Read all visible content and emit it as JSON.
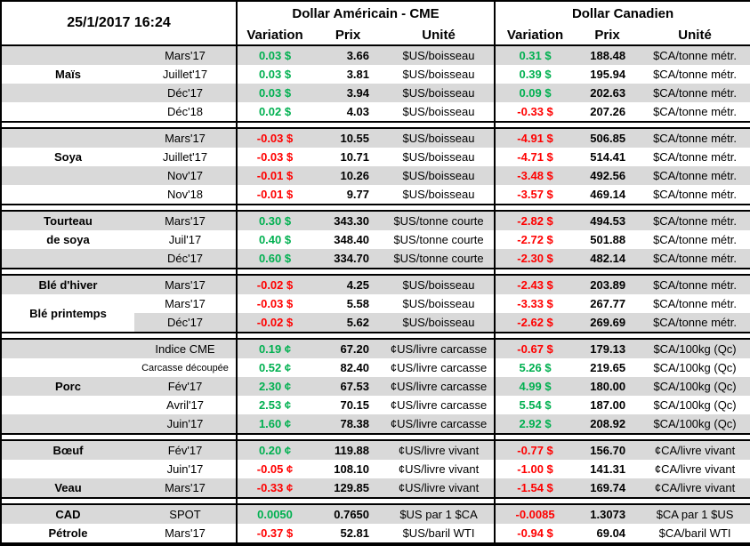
{
  "header": {
    "datetime": "25/1/2017 16:24",
    "us_title": "Dollar Américain - CME",
    "ca_title": "Dollar Canadien",
    "variation_label": "Variation",
    "prix_label": "Prix",
    "unite_label": "Unité"
  },
  "colors": {
    "positive": "#00B050",
    "negative": "#FF0000",
    "band": "#D9D9D9",
    "border": "#000000"
  },
  "sections": [
    {
      "commodity": "Maïs",
      "rows": [
        {
          "band": true,
          "name": "",
          "month": "Mars'17",
          "us": {
            "var": "0.03 $",
            "prix": "3.66",
            "unit": "$US/boisseau"
          },
          "ca": {
            "var": "0.31 $",
            "prix": "188.48",
            "unit": "$CA/tonne métr."
          }
        },
        {
          "band": false,
          "name": "Maïs",
          "month": "Juillet'17",
          "us": {
            "var": "0.03 $",
            "prix": "3.81",
            "unit": "$US/boisseau"
          },
          "ca": {
            "var": "0.39 $",
            "prix": "195.94",
            "unit": "$CA/tonne métr."
          }
        },
        {
          "band": true,
          "name": "",
          "month": "Déc'17",
          "us": {
            "var": "0.03 $",
            "prix": "3.94",
            "unit": "$US/boisseau"
          },
          "ca": {
            "var": "0.09 $",
            "prix": "202.63",
            "unit": "$CA/tonne métr."
          }
        },
        {
          "band": false,
          "name": "",
          "month": "Déc'18",
          "us": {
            "var": "0.02 $",
            "prix": "4.03",
            "unit": "$US/boisseau"
          },
          "ca": {
            "var": "-0.33 $",
            "prix": "207.26",
            "unit": "$CA/tonne métr."
          }
        }
      ]
    },
    {
      "commodity": "Soya",
      "rows": [
        {
          "band": true,
          "name": "",
          "month": "Mars'17",
          "us": {
            "var": "-0.03 $",
            "prix": "10.55",
            "unit": "$US/boisseau"
          },
          "ca": {
            "var": "-4.91 $",
            "prix": "506.85",
            "unit": "$CA/tonne métr."
          }
        },
        {
          "band": false,
          "name": "Soya",
          "month": "Juillet'17",
          "us": {
            "var": "-0.03 $",
            "prix": "10.71",
            "unit": "$US/boisseau"
          },
          "ca": {
            "var": "-4.71 $",
            "prix": "514.41",
            "unit": "$CA/tonne métr."
          }
        },
        {
          "band": true,
          "name": "",
          "month": "Nov'17",
          "us": {
            "var": "-0.01 $",
            "prix": "10.26",
            "unit": "$US/boisseau"
          },
          "ca": {
            "var": "-3.48 $",
            "prix": "492.56",
            "unit": "$CA/tonne métr."
          }
        },
        {
          "band": false,
          "name": "",
          "month": "Nov'18",
          "us": {
            "var": "-0.01 $",
            "prix": "9.77",
            "unit": "$US/boisseau"
          },
          "ca": {
            "var": "-3.57 $",
            "prix": "469.14",
            "unit": "$CA/tonne métr."
          }
        }
      ]
    },
    {
      "commodity": "Tourteau de soya",
      "rows": [
        {
          "band": true,
          "name": "Tourteau",
          "month": "Mars'17",
          "us": {
            "var": "0.30 $",
            "prix": "343.30",
            "unit": "$US/tonne courte"
          },
          "ca": {
            "var": "-2.82 $",
            "prix": "494.53",
            "unit": "$CA/tonne métr."
          }
        },
        {
          "band": false,
          "name": "de soya",
          "month": "Juil'17",
          "us": {
            "var": "0.40 $",
            "prix": "348.40",
            "unit": "$US/tonne courte"
          },
          "ca": {
            "var": "-2.72 $",
            "prix": "501.88",
            "unit": "$CA/tonne métr."
          }
        },
        {
          "band": true,
          "name": "",
          "month": "Déc'17",
          "us": {
            "var": "0.60 $",
            "prix": "334.70",
            "unit": "$US/tonne courte"
          },
          "ca": {
            "var": "-2.30 $",
            "prix": "482.14",
            "unit": "$CA/tonne métr."
          }
        }
      ]
    },
    {
      "commodity": "Blé",
      "rows": [
        {
          "band": true,
          "name": "Blé d'hiver",
          "month": "Mars'17",
          "us": {
            "var": "-0.02 $",
            "prix": "4.25",
            "unit": "$US/boisseau"
          },
          "ca": {
            "var": "-2.43 $",
            "prix": "203.89",
            "unit": "$CA/tonne métr."
          }
        },
        {
          "band": false,
          "name": "Blé printemps",
          "name_rowspan": 2,
          "month": "Mars'17",
          "us": {
            "var": "-0.03 $",
            "prix": "5.58",
            "unit": "$US/boisseau"
          },
          "ca": {
            "var": "-3.33 $",
            "prix": "267.77",
            "unit": "$CA/tonne métr."
          }
        },
        {
          "band": true,
          "name_skip": true,
          "month": "Déc'17",
          "us": {
            "var": "-0.02 $",
            "prix": "5.62",
            "unit": "$US/boisseau"
          },
          "ca": {
            "var": "-2.62 $",
            "prix": "269.69",
            "unit": "$CA/tonne métr."
          }
        }
      ]
    },
    {
      "commodity": "Porc",
      "rows": [
        {
          "band": true,
          "name": "",
          "month": "Indice CME",
          "us": {
            "var": "0.19 ¢",
            "prix": "67.20",
            "unit": "¢US/livre carcasse"
          },
          "ca": {
            "var": "-0.67 $",
            "prix": "179.13",
            "unit": "$CA/100kg (Qc)"
          }
        },
        {
          "band": false,
          "name": "",
          "month": "Carcasse découpée",
          "us": {
            "var": "0.52 ¢",
            "prix": "82.40",
            "unit": "¢US/livre carcasse"
          },
          "ca": {
            "var": "5.26 $",
            "prix": "219.65",
            "unit": "$CA/100kg (Qc)"
          }
        },
        {
          "band": true,
          "name": "Porc",
          "month": "Fév'17",
          "us": {
            "var": "2.30 ¢",
            "prix": "67.53",
            "unit": "¢US/livre carcasse"
          },
          "ca": {
            "var": "4.99 $",
            "prix": "180.00",
            "unit": "$CA/100kg (Qc)"
          }
        },
        {
          "band": false,
          "name": "",
          "month": "Avril'17",
          "us": {
            "var": "2.53 ¢",
            "prix": "70.15",
            "unit": "¢US/livre carcasse"
          },
          "ca": {
            "var": "5.54 $",
            "prix": "187.00",
            "unit": "$CA/100kg (Qc)"
          }
        },
        {
          "band": true,
          "name": "",
          "month": "Juin'17",
          "us": {
            "var": "1.60 ¢",
            "prix": "78.38",
            "unit": "¢US/livre carcasse"
          },
          "ca": {
            "var": "2.92 $",
            "prix": "208.92",
            "unit": "$CA/100kg (Qc)"
          }
        }
      ]
    },
    {
      "commodity": "Bœuf / Veau",
      "rows": [
        {
          "band": true,
          "name": "Bœuf",
          "month": "Fév'17",
          "us": {
            "var": "0.20 ¢",
            "prix": "119.88",
            "unit": "¢US/livre vivant"
          },
          "ca": {
            "var": "-0.77 $",
            "prix": "156.70",
            "unit": "¢CA/livre vivant"
          }
        },
        {
          "band": false,
          "name": "",
          "month": "Juin'17",
          "us": {
            "var": "-0.05 ¢",
            "prix": "108.10",
            "unit": "¢US/livre vivant"
          },
          "ca": {
            "var": "-1.00 $",
            "prix": "141.31",
            "unit": "¢CA/livre vivant"
          }
        },
        {
          "band": true,
          "name": "Veau",
          "month": "Mars'17",
          "us": {
            "var": "-0.33 ¢",
            "prix": "129.85",
            "unit": "¢US/livre vivant"
          },
          "ca": {
            "var": "-1.54 $",
            "prix": "169.74",
            "unit": "¢CA/livre vivant"
          }
        }
      ]
    },
    {
      "commodity": "CAD / Pétrole",
      "rows": [
        {
          "band": true,
          "name": "CAD",
          "month": "SPOT",
          "us": {
            "var": "0.0050",
            "prix": "0.7650",
            "unit": "$US par 1 $CA"
          },
          "ca": {
            "var": "-0.0085",
            "prix": "1.3073",
            "unit": "$CA par 1 $US"
          }
        },
        {
          "band": false,
          "name": "Pétrole",
          "month": "Mars'17",
          "us": {
            "var": "-0.37 $",
            "prix": "52.81",
            "unit": "$US/baril WTI"
          },
          "ca": {
            "var": "-0.94 $",
            "prix": "69.04",
            "unit": "$CA/baril WTI"
          }
        }
      ]
    }
  ]
}
